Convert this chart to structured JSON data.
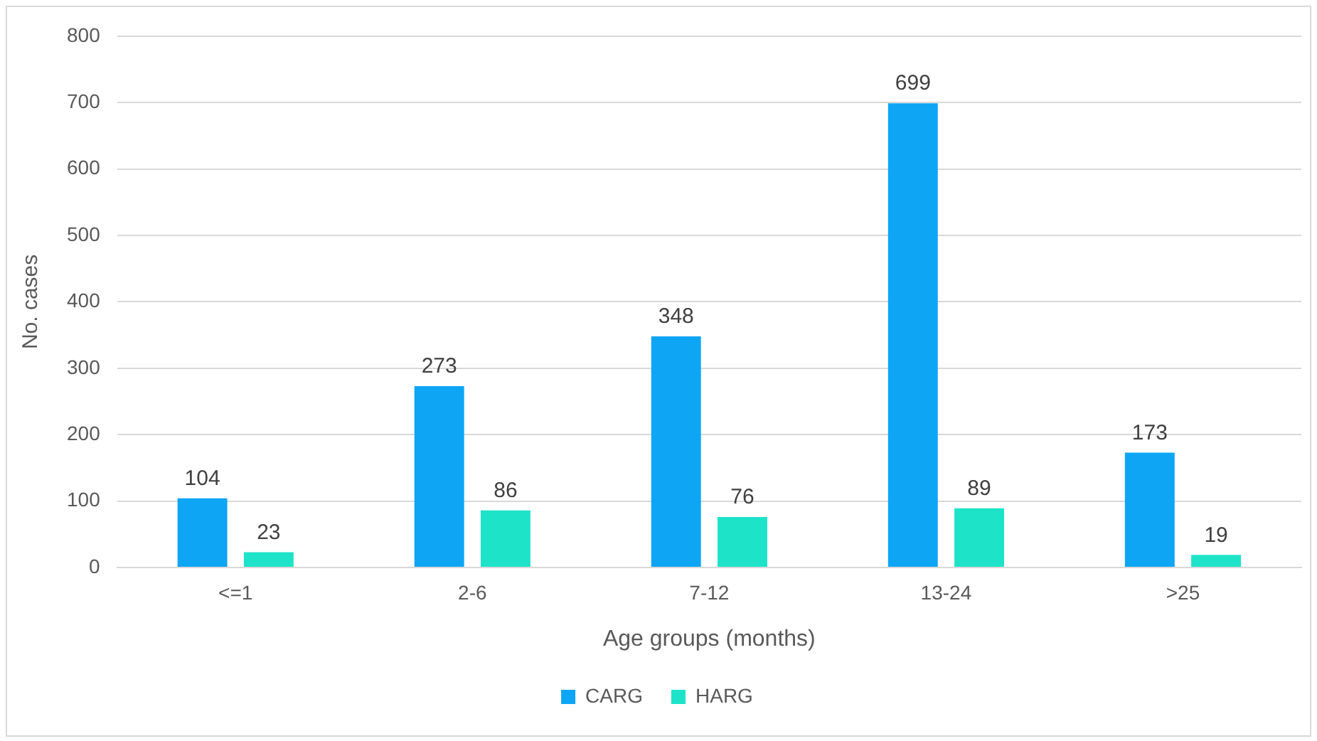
{
  "chart_data": {
    "type": "bar",
    "xlabel": "Age groups (months)",
    "ylabel": "No. cases",
    "categories": [
      "<=1",
      "2-6",
      "7-12",
      "13-24",
      ">25"
    ],
    "series": [
      {
        "name": "CARG",
        "color": "#0ea5f5",
        "values": [
          104,
          273,
          348,
          699,
          173
        ]
      },
      {
        "name": "HARG",
        "color": "#1de3c9",
        "values": [
          23,
          86,
          76,
          89,
          19
        ]
      }
    ],
    "ylim": [
      0,
      800
    ],
    "yticks": [
      0,
      100,
      200,
      300,
      400,
      500,
      600,
      700,
      800
    ],
    "grid": "y",
    "legend": "bottom",
    "data_labels": true
  }
}
